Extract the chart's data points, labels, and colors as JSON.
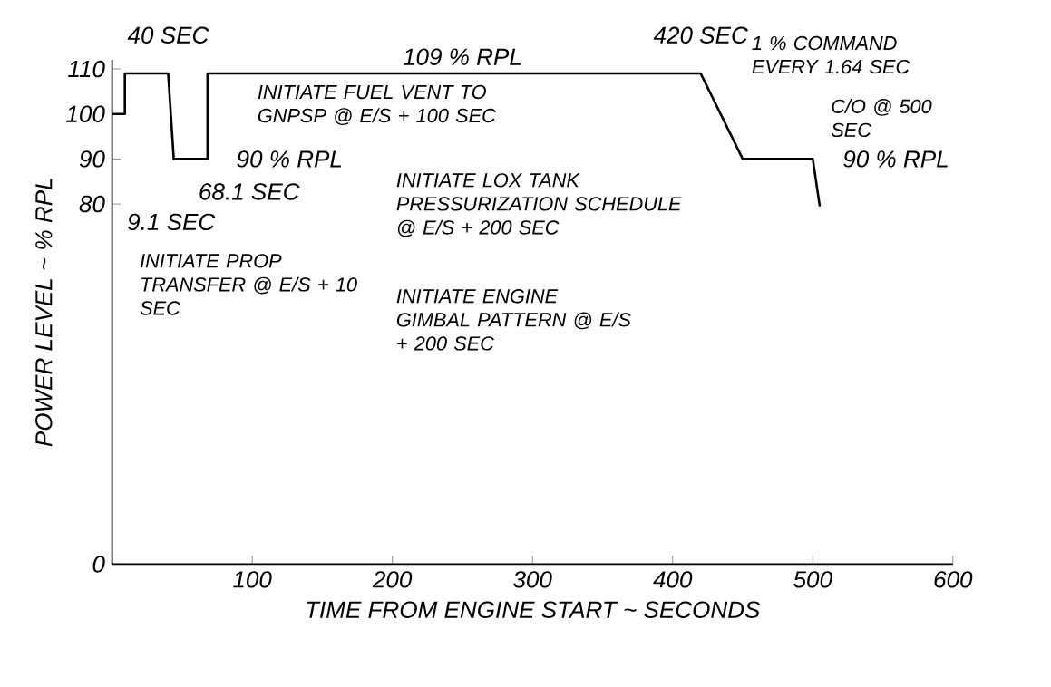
{
  "chart_data": {
    "type": "line",
    "xlabel": "TIME FROM ENGINE START ~ SECONDS",
    "ylabel": "POWER LEVEL ~ % RPL",
    "x": [
      0,
      9.1,
      9.1,
      40,
      44,
      68.1,
      68.1,
      420,
      450,
      500,
      505
    ],
    "series": [
      {
        "color": "#000000",
        "values": [
          100,
          100,
          109,
          109,
          90,
          90,
          109,
          109,
          90,
          90,
          79.5
        ]
      }
    ],
    "xlim": [
      0,
      600
    ],
    "xticks": [
      100,
      200,
      300,
      400,
      500,
      600
    ],
    "ylim": [
      0,
      112
    ],
    "yticks": [
      0,
      80,
      90,
      100,
      110
    ],
    "annotations": [
      {
        "text": "40 SEC",
        "x": 40,
        "y": 109
      },
      {
        "text": "420 SEC",
        "x": 420,
        "y": 109
      },
      {
        "text": "109 % RPL",
        "x": 250,
        "y": 109
      },
      "9.1 SEC",
      {
        "text": "90 % RPL",
        "x": 56,
        "y": 90
      },
      "68.1 SEC",
      "INITIATE FUEL VENT TO GNPSP @ E/S + 100 SEC",
      "INITIATE LOX TANK PRESSURIZATION SCHEDULE @ E/S + 200 SEC",
      "INITIATE ENGINE GIMBAL PATTERN @ E/S + 200 SEC",
      "INITIATE PROP TRANSFER @ E/S + 10 SEC",
      {
        "text": "1 % COMMAND EVERY 1.64 SEC",
        "x": 435,
        "y": 100
      },
      {
        "text": "C/O @ 500 SEC",
        "x": 500,
        "y": 90
      },
      {
        "text": "90 % RPL",
        "x": 500,
        "y": 90
      }
    ]
  }
}
